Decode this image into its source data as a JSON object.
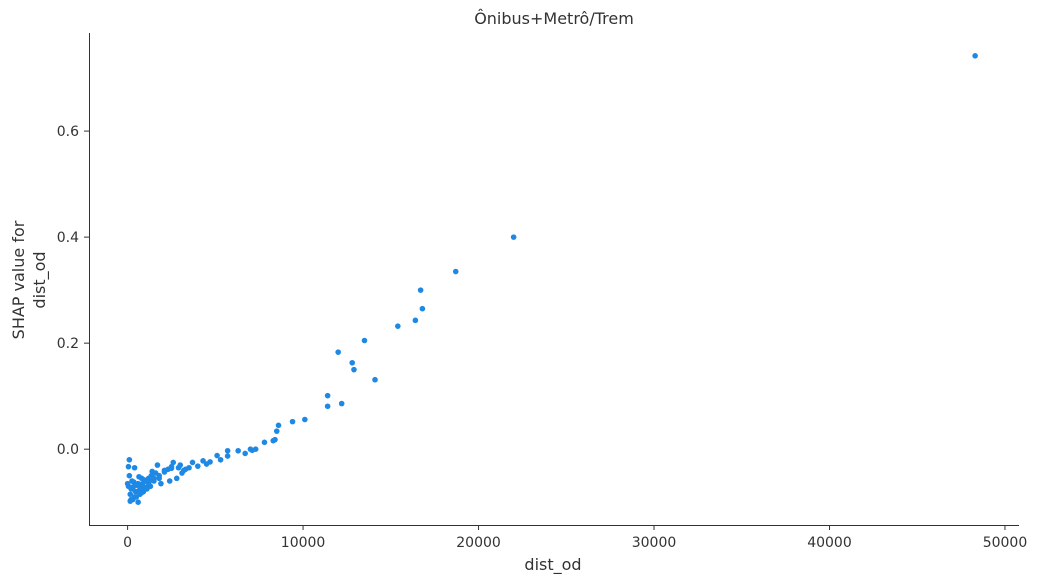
{
  "chart_data": {
    "type": "scatter",
    "title": "Ônibus+Metrô/Trem",
    "xlabel": "dist_od",
    "ylabel_lines": [
      "SHAP value for",
      "dist_od"
    ],
    "xlim": [
      -2200,
      50800
    ],
    "ylim": [
      -0.143,
      0.785
    ],
    "xticks": [
      0,
      10000,
      20000,
      30000,
      40000,
      50000
    ],
    "xtick_labels": [
      "0",
      "10000",
      "20000",
      "30000",
      "40000",
      "50000"
    ],
    "yticks": [
      0.0,
      0.2,
      0.4,
      0.6
    ],
    "ytick_labels": [
      "0.0",
      "0.2",
      "0.4",
      "0.6"
    ],
    "grid": false,
    "point_color": "#1e88e5",
    "series": [
      {
        "x": [
          48300,
          22000,
          18700,
          16700,
          16800,
          16400,
          15400,
          13500,
          12000,
          12800,
          12900,
          14100,
          11400,
          11400,
          12200,
          10100,
          9400,
          8600,
          8500,
          8400,
          8300,
          7800,
          7300,
          7100,
          7000,
          6700,
          6300,
          5700,
          5700,
          5300,
          5100,
          4700,
          4500,
          4300,
          4000,
          3700,
          3500,
          3200,
          3100,
          3000,
          2800,
          2600,
          2500,
          2400,
          2300,
          2100,
          1900,
          1800,
          1700,
          1600,
          1500,
          1400,
          1300,
          1200,
          1100,
          1000,
          900,
          800,
          700,
          600,
          500,
          400,
          300,
          200,
          100,
          50,
          0,
          150,
          250,
          350,
          450,
          550,
          650,
          750,
          850,
          950,
          1050,
          1150,
          1250,
          1350,
          100,
          200,
          300,
          400,
          600,
          800,
          1000,
          1200,
          1500,
          1800,
          2100,
          2500,
          2900,
          3300,
          50,
          150,
          250,
          450,
          650,
          850
        ],
        "y": [
          0.742,
          0.4,
          0.335,
          0.3,
          0.265,
          0.243,
          0.232,
          0.205,
          0.183,
          0.163,
          0.15,
          0.131,
          0.101,
          0.081,
          0.086,
          0.056,
          0.052,
          0.045,
          0.034,
          0.018,
          0.016,
          0.013,
          0.0,
          -0.002,
          0.0,
          -0.008,
          -0.003,
          -0.013,
          -0.003,
          -0.02,
          -0.012,
          -0.024,
          -0.028,
          -0.022,
          -0.032,
          -0.025,
          -0.035,
          -0.04,
          -0.045,
          -0.03,
          -0.055,
          -0.025,
          -0.036,
          -0.06,
          -0.038,
          -0.043,
          -0.065,
          -0.055,
          -0.03,
          -0.045,
          -0.06,
          -0.042,
          -0.07,
          -0.055,
          -0.075,
          -0.06,
          -0.08,
          -0.055,
          -0.085,
          -0.065,
          -0.09,
          -0.035,
          -0.075,
          -0.095,
          -0.05,
          -0.07,
          -0.065,
          -0.085,
          -0.072,
          -0.062,
          -0.08,
          -0.068,
          -0.078,
          -0.07,
          -0.065,
          -0.058,
          -0.073,
          -0.062,
          -0.06,
          -0.05,
          -0.02,
          -0.075,
          -0.095,
          -0.09,
          -0.1,
          -0.082,
          -0.072,
          -0.065,
          -0.055,
          -0.05,
          -0.04,
          -0.033,
          -0.035,
          -0.038,
          -0.033,
          -0.098,
          -0.06,
          -0.068,
          -0.052,
          -0.078
        ]
      }
    ]
  }
}
